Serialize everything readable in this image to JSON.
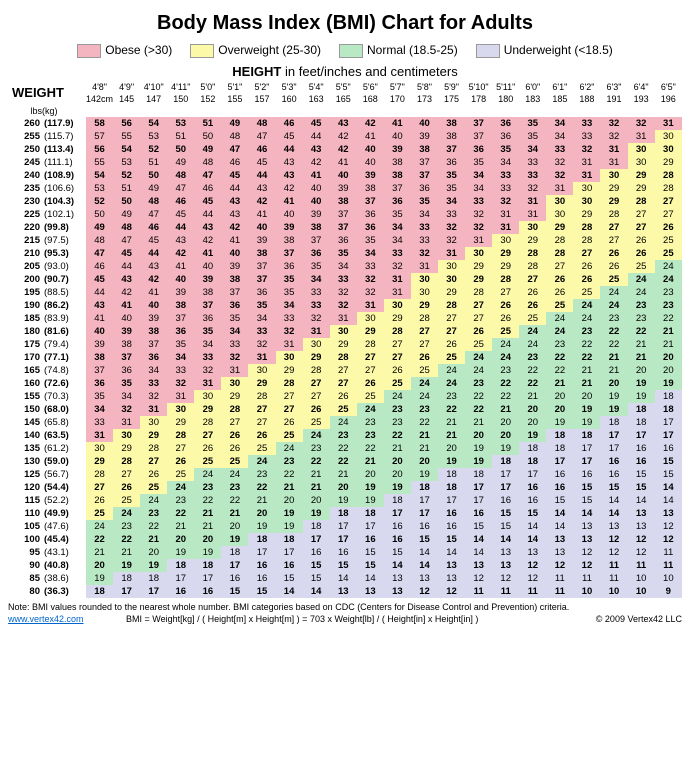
{
  "title": "Body Mass Index (BMI) Chart for Adults",
  "legend": [
    {
      "label": "Obese (>30)",
      "color": "#f5b5c0"
    },
    {
      "label": "Overweight (25-30)",
      "color": "#fcf9a8"
    },
    {
      "label": "Normal (18.5-25)",
      "color": "#b8e8c4"
    },
    {
      "label": "Underweight (<18.5)",
      "color": "#d8d8ef"
    }
  ],
  "heightLabel": "HEIGHT",
  "heightLabelSuffix": " in feet/inches and centimeters",
  "weightLabel": "WEIGHT",
  "unitsLbs": "lbs",
  "unitsKg": "(kg)",
  "colors": {
    "obese": "#f5b5c0",
    "over": "#fcf9a8",
    "normal": "#b8e8c4",
    "under": "#d8d8ef",
    "bg": "#ffffff"
  },
  "heights_ftin": [
    "4'8\"",
    "4'9\"",
    "4'10\"",
    "4'11\"",
    "5'0\"",
    "5'1\"",
    "5'2\"",
    "5'3\"",
    "5'4\"",
    "5'5\"",
    "5'6\"",
    "5'7\"",
    "5'8\"",
    "5'9\"",
    "5'10\"",
    "5'11\"",
    "6'0\"",
    "6'1\"",
    "6'2\"",
    "6'3\"",
    "6'4\"",
    "6'5\""
  ],
  "heights_cm": [
    "142cm",
    "145",
    "147",
    "150",
    "152",
    "155",
    "157",
    "160",
    "163",
    "165",
    "168",
    "170",
    "173",
    "175",
    "178",
    "180",
    "183",
    "185",
    "188",
    "191",
    "193",
    "196"
  ],
  "rows": [
    {
      "lbs": 260,
      "kg": "(117.9)",
      "bold": true,
      "v": [
        58,
        56,
        54,
        53,
        51,
        49,
        48,
        46,
        45,
        43,
        42,
        41,
        40,
        38,
        37,
        36,
        35,
        34,
        33,
        32,
        32,
        31
      ]
    },
    {
      "lbs": 255,
      "kg": "(115.7)",
      "v": [
        57,
        55,
        53,
        51,
        50,
        48,
        47,
        45,
        44,
        42,
        41,
        40,
        39,
        38,
        37,
        36,
        35,
        34,
        33,
        32,
        31,
        30
      ]
    },
    {
      "lbs": 250,
      "kg": "(113.4)",
      "bold": true,
      "v": [
        56,
        54,
        52,
        50,
        49,
        47,
        46,
        44,
        43,
        42,
        40,
        39,
        38,
        37,
        36,
        35,
        34,
        33,
        32,
        31,
        30,
        30
      ]
    },
    {
      "lbs": 245,
      "kg": "(111.1)",
      "v": [
        55,
        53,
        51,
        49,
        48,
        46,
        45,
        43,
        42,
        41,
        40,
        38,
        37,
        36,
        35,
        34,
        33,
        32,
        31,
        31,
        30,
        29
      ]
    },
    {
      "lbs": 240,
      "kg": "(108.9)",
      "bold": true,
      "v": [
        54,
        52,
        50,
        48,
        47,
        45,
        44,
        43,
        41,
        40,
        39,
        38,
        37,
        35,
        34,
        33,
        33,
        32,
        31,
        30,
        29,
        28
      ]
    },
    {
      "lbs": 235,
      "kg": "(106.6)",
      "v": [
        53,
        51,
        49,
        47,
        46,
        44,
        43,
        42,
        40,
        39,
        38,
        37,
        36,
        35,
        34,
        33,
        32,
        31,
        30,
        29,
        29,
        28
      ]
    },
    {
      "lbs": 230,
      "kg": "(104.3)",
      "bold": true,
      "v": [
        52,
        50,
        48,
        46,
        45,
        43,
        42,
        41,
        40,
        38,
        37,
        36,
        35,
        34,
        33,
        32,
        31,
        30,
        30,
        29,
        28,
        27
      ]
    },
    {
      "lbs": 225,
      "kg": "(102.1)",
      "v": [
        50,
        49,
        47,
        45,
        44,
        43,
        41,
        40,
        39,
        37,
        36,
        35,
        34,
        33,
        32,
        31,
        31,
        30,
        29,
        28,
        27,
        27
      ]
    },
    {
      "lbs": 220,
      "kg": "(99.8)",
      "bold": true,
      "v": [
        49,
        48,
        46,
        44,
        43,
        42,
        40,
        39,
        38,
        37,
        36,
        34,
        33,
        32,
        32,
        31,
        30,
        29,
        28,
        27,
        27,
        26
      ]
    },
    {
      "lbs": 215,
      "kg": "(97.5)",
      "v": [
        48,
        47,
        45,
        43,
        42,
        41,
        39,
        38,
        37,
        36,
        35,
        34,
        33,
        32,
        31,
        30,
        29,
        28,
        28,
        27,
        26,
        25
      ]
    },
    {
      "lbs": 210,
      "kg": "(95.3)",
      "bold": true,
      "v": [
        47,
        45,
        44,
        42,
        41,
        40,
        38,
        37,
        36,
        35,
        34,
        33,
        32,
        31,
        30,
        29,
        28,
        28,
        27,
        26,
        26,
        25
      ]
    },
    {
      "lbs": 205,
      "kg": "(93.0)",
      "v": [
        46,
        44,
        43,
        41,
        40,
        39,
        37,
        36,
        35,
        34,
        33,
        32,
        31,
        30,
        29,
        29,
        28,
        27,
        26,
        26,
        25,
        24
      ]
    },
    {
      "lbs": 200,
      "kg": "(90.7)",
      "bold": true,
      "v": [
        45,
        43,
        42,
        40,
        39,
        38,
        37,
        35,
        34,
        33,
        32,
        31,
        30,
        30,
        29,
        28,
        27,
        26,
        26,
        25,
        24,
        24
      ]
    },
    {
      "lbs": 195,
      "kg": "(88.5)",
      "v": [
        44,
        42,
        41,
        39,
        38,
        37,
        36,
        35,
        33,
        32,
        32,
        31,
        30,
        29,
        28,
        27,
        26,
        26,
        25,
        24,
        24,
        23
      ]
    },
    {
      "lbs": 190,
      "kg": "(86.2)",
      "bold": true,
      "v": [
        43,
        41,
        40,
        38,
        37,
        36,
        35,
        34,
        33,
        32,
        31,
        30,
        29,
        28,
        27,
        26,
        26,
        25,
        24,
        24,
        23,
        23
      ]
    },
    {
      "lbs": 185,
      "kg": "(83.9)",
      "v": [
        41,
        40,
        39,
        37,
        36,
        35,
        34,
        33,
        32,
        31,
        30,
        29,
        28,
        27,
        27,
        26,
        25,
        24,
        24,
        23,
        23,
        22
      ]
    },
    {
      "lbs": 180,
      "kg": "(81.6)",
      "bold": true,
      "v": [
        40,
        39,
        38,
        36,
        35,
        34,
        33,
        32,
        31,
        30,
        29,
        28,
        27,
        27,
        26,
        25,
        24,
        24,
        23,
        22,
        22,
        21
      ]
    },
    {
      "lbs": 175,
      "kg": "(79.4)",
      "v": [
        39,
        38,
        37,
        35,
        34,
        33,
        32,
        31,
        30,
        29,
        28,
        27,
        27,
        26,
        25,
        24,
        24,
        23,
        22,
        22,
        21,
        21
      ]
    },
    {
      "lbs": 170,
      "kg": "(77.1)",
      "bold": true,
      "v": [
        38,
        37,
        36,
        34,
        33,
        32,
        31,
        30,
        29,
        28,
        27,
        27,
        26,
        25,
        24,
        24,
        23,
        22,
        22,
        21,
        21,
        20
      ]
    },
    {
      "lbs": 165,
      "kg": "(74.8)",
      "v": [
        37,
        36,
        34,
        33,
        32,
        31,
        30,
        29,
        28,
        27,
        27,
        26,
        25,
        24,
        24,
        23,
        22,
        22,
        21,
        21,
        20,
        20
      ]
    },
    {
      "lbs": 160,
      "kg": "(72.6)",
      "bold": true,
      "v": [
        36,
        35,
        33,
        32,
        31,
        30,
        29,
        28,
        27,
        27,
        26,
        25,
        24,
        24,
        23,
        22,
        22,
        21,
        21,
        20,
        19,
        19
      ]
    },
    {
      "lbs": 155,
      "kg": "(70.3)",
      "v": [
        35,
        34,
        32,
        31,
        30,
        29,
        28,
        27,
        27,
        26,
        25,
        24,
        24,
        23,
        22,
        22,
        21,
        20,
        20,
        19,
        19,
        18
      ]
    },
    {
      "lbs": 150,
      "kg": "(68.0)",
      "bold": true,
      "v": [
        34,
        32,
        31,
        30,
        29,
        28,
        27,
        27,
        26,
        25,
        24,
        23,
        23,
        22,
        22,
        21,
        20,
        20,
        19,
        19,
        18,
        18
      ]
    },
    {
      "lbs": 145,
      "kg": "(65.8)",
      "v": [
        33,
        31,
        30,
        29,
        28,
        27,
        27,
        26,
        25,
        24,
        23,
        23,
        22,
        21,
        21,
        20,
        20,
        19,
        19,
        18,
        18,
        17
      ]
    },
    {
      "lbs": 140,
      "kg": "(63.5)",
      "bold": true,
      "v": [
        31,
        30,
        29,
        28,
        27,
        26,
        26,
        25,
        24,
        23,
        23,
        22,
        21,
        21,
        20,
        20,
        19,
        18,
        18,
        17,
        17,
        17
      ]
    },
    {
      "lbs": 135,
      "kg": "(61.2)",
      "v": [
        30,
        29,
        28,
        27,
        26,
        26,
        25,
        24,
        23,
        22,
        22,
        21,
        21,
        20,
        19,
        19,
        18,
        18,
        17,
        17,
        16,
        16
      ]
    },
    {
      "lbs": 130,
      "kg": "(59.0)",
      "bold": true,
      "v": [
        29,
        28,
        27,
        26,
        25,
        25,
        24,
        23,
        22,
        22,
        21,
        20,
        20,
        19,
        19,
        18,
        18,
        17,
        17,
        16,
        16,
        15
      ]
    },
    {
      "lbs": 125,
      "kg": "(56.7)",
      "v": [
        28,
        27,
        26,
        25,
        24,
        24,
        23,
        22,
        21,
        21,
        20,
        20,
        19,
        18,
        18,
        17,
        17,
        16,
        16,
        16,
        15,
        15
      ]
    },
    {
      "lbs": 120,
      "kg": "(54.4)",
      "bold": true,
      "v": [
        27,
        26,
        25,
        24,
        23,
        23,
        22,
        21,
        21,
        20,
        19,
        19,
        18,
        18,
        17,
        17,
        16,
        16,
        15,
        15,
        15,
        14
      ]
    },
    {
      "lbs": 115,
      "kg": "(52.2)",
      "v": [
        26,
        25,
        24,
        23,
        22,
        22,
        21,
        20,
        20,
        19,
        19,
        18,
        17,
        17,
        17,
        16,
        16,
        15,
        15,
        14,
        14,
        14
      ]
    },
    {
      "lbs": 110,
      "kg": "(49.9)",
      "bold": true,
      "v": [
        25,
        24,
        23,
        22,
        21,
        21,
        20,
        19,
        19,
        18,
        18,
        17,
        17,
        16,
        16,
        15,
        15,
        14,
        14,
        14,
        13,
        13
      ]
    },
    {
      "lbs": 105,
      "kg": "(47.6)",
      "v": [
        24,
        23,
        22,
        21,
        21,
        20,
        19,
        19,
        18,
        17,
        17,
        16,
        16,
        16,
        15,
        15,
        14,
        14,
        13,
        13,
        13,
        12
      ]
    },
    {
      "lbs": 100,
      "kg": "(45.4)",
      "bold": true,
      "v": [
        22,
        22,
        21,
        20,
        20,
        19,
        18,
        18,
        17,
        17,
        16,
        16,
        15,
        15,
        14,
        14,
        14,
        13,
        13,
        12,
        12,
        12
      ]
    },
    {
      "lbs": 95,
      "kg": "(43.1)",
      "v": [
        21,
        21,
        20,
        19,
        19,
        18,
        17,
        17,
        16,
        16,
        15,
        15,
        14,
        14,
        14,
        13,
        13,
        13,
        12,
        12,
        12,
        11
      ]
    },
    {
      "lbs": 90,
      "kg": "(40.8)",
      "bold": true,
      "v": [
        20,
        19,
        19,
        18,
        18,
        17,
        16,
        16,
        15,
        15,
        15,
        14,
        14,
        13,
        13,
        13,
        12,
        12,
        12,
        11,
        11,
        11
      ]
    },
    {
      "lbs": 85,
      "kg": "(38.6)",
      "v": [
        19,
        18,
        18,
        17,
        17,
        16,
        16,
        15,
        15,
        14,
        14,
        13,
        13,
        13,
        12,
        12,
        12,
        11,
        11,
        11,
        10,
        10
      ]
    },
    {
      "lbs": 80,
      "kg": "(36.3)",
      "bold": true,
      "v": [
        18,
        17,
        17,
        16,
        16,
        15,
        15,
        14,
        14,
        13,
        13,
        13,
        12,
        12,
        11,
        11,
        11,
        11,
        10,
        10,
        10,
        9
      ]
    }
  ],
  "footnote1": "Note: BMI values rounded to the nearest whole number. BMI categories based on CDC (Centers for Disease Control and Prevention) criteria.",
  "footnote2": "BMI = Weight[kg] / ( Height[m] x Height[m] ) = 703 x Weight[lb] / ( Height[in] x Height[in] )",
  "link": "www.vertex42.com",
  "copyright": "© 2009 Vertex42 LLC"
}
